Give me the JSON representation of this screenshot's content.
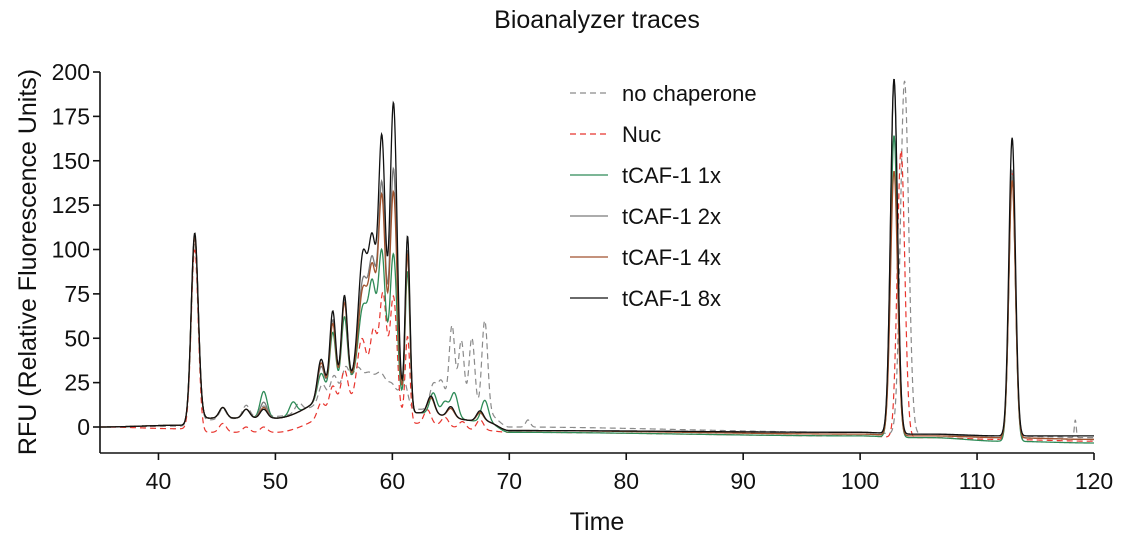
{
  "chart_data": {
    "type": "line",
    "title": "Bioanalyzer traces",
    "xlabel": "Time",
    "ylabel": "RFU (Relative Fluorescence Units)",
    "xlim": [
      35,
      120
    ],
    "ylim": [
      -15,
      200
    ],
    "xticks": [
      40,
      50,
      60,
      70,
      80,
      90,
      100,
      110,
      120
    ],
    "yticks": [
      0,
      25,
      50,
      75,
      100,
      125,
      150,
      175,
      200
    ],
    "grid": false,
    "legend_position": "top-center",
    "series": [
      {
        "name": "no chaperone",
        "color": "#8a8a8a",
        "dash": true,
        "baseline": [
          [
            35,
            0
          ],
          [
            42,
            0.5
          ],
          [
            44,
            4
          ],
          [
            50,
            6
          ],
          [
            58,
            22
          ],
          [
            62,
            10
          ],
          [
            68,
            8
          ],
          [
            70,
            0
          ],
          [
            100,
            -3
          ],
          [
            104,
            -4
          ],
          [
            106,
            -4
          ],
          [
            112,
            -5
          ],
          [
            120,
            -6
          ]
        ],
        "peaks": [
          [
            43.1,
            102,
            0.3
          ],
          [
            45.5,
            6,
            0.3
          ],
          [
            47.5,
            7,
            0.3
          ],
          [
            49,
            6,
            0.3
          ],
          [
            52,
            5,
            0.3
          ],
          [
            54,
            10,
            0.3
          ],
          [
            55,
            12,
            0.3
          ],
          [
            56,
            14,
            0.3
          ],
          [
            57,
            12,
            0.4
          ],
          [
            58,
            8,
            0.4
          ],
          [
            59,
            10,
            0.4
          ],
          [
            60,
            8,
            0.4
          ],
          [
            61,
            14,
            0.3
          ],
          [
            63.5,
            14,
            0.3
          ],
          [
            64.2,
            16,
            0.3
          ],
          [
            65.1,
            48,
            0.25
          ],
          [
            65.9,
            40,
            0.25
          ],
          [
            66.8,
            42,
            0.25
          ],
          [
            67.9,
            52,
            0.25
          ],
          [
            71.6,
            4,
            0.2
          ],
          [
            103.8,
            199,
            0.35
          ],
          [
            113,
            151,
            0.28
          ],
          [
            118.4,
            10,
            0.08
          ]
        ]
      },
      {
        "name": "Nuc",
        "color": "#e8352e",
        "dash": true,
        "baseline": [
          [
            35,
            0
          ],
          [
            42,
            -1
          ],
          [
            44,
            -3
          ],
          [
            50,
            -3
          ],
          [
            58,
            15
          ],
          [
            62,
            2
          ],
          [
            68,
            -2
          ],
          [
            70,
            -3
          ],
          [
            100,
            -5
          ],
          [
            104,
            -6
          ],
          [
            106,
            -6
          ],
          [
            112,
            -7
          ],
          [
            120,
            -8
          ]
        ],
        "peaks": [
          [
            43.1,
            102,
            0.3
          ],
          [
            45.5,
            5,
            0.3
          ],
          [
            47.5,
            3,
            0.3
          ],
          [
            49,
            3,
            0.3
          ],
          [
            53.9,
            8,
            0.3
          ],
          [
            54.9,
            14,
            0.3
          ],
          [
            55.9,
            20,
            0.3
          ],
          [
            57.4,
            35,
            0.4
          ],
          [
            58.4,
            38,
            0.3
          ],
          [
            59.2,
            62,
            0.3
          ],
          [
            60.1,
            65,
            0.3
          ],
          [
            61.3,
            48,
            0.2
          ],
          [
            63,
            8,
            0.3
          ],
          [
            64.5,
            5,
            0.3
          ],
          [
            66,
            4,
            0.3
          ],
          [
            67.5,
            6,
            0.3
          ],
          [
            103.5,
            162,
            0.32
          ],
          [
            113,
            150,
            0.28
          ]
        ]
      },
      {
        "name": "tCAF-1 1x",
        "color": "#2e8b57",
        "dash": false,
        "baseline": [
          [
            35,
            0
          ],
          [
            42,
            1
          ],
          [
            44,
            5
          ],
          [
            50,
            5
          ],
          [
            58,
            28
          ],
          [
            62,
            8
          ],
          [
            68,
            3
          ],
          [
            70,
            -3
          ],
          [
            100,
            -5
          ],
          [
            104,
            -6
          ],
          [
            106,
            -6
          ],
          [
            112,
            -8
          ],
          [
            120,
            -9
          ]
        ],
        "peaks": [
          [
            43.1,
            104,
            0.3
          ],
          [
            45.5,
            6,
            0.3
          ],
          [
            47.5,
            5,
            0.3
          ],
          [
            49,
            15,
            0.3
          ],
          [
            51.5,
            7,
            0.3
          ],
          [
            53.9,
            14,
            0.3
          ],
          [
            54.9,
            33,
            0.25
          ],
          [
            55.9,
            38,
            0.25
          ],
          [
            57.5,
            40,
            0.4
          ],
          [
            58.3,
            48,
            0.3
          ],
          [
            59.1,
            74,
            0.3
          ],
          [
            60.1,
            80,
            0.3
          ],
          [
            61.3,
            78,
            0.2
          ],
          [
            63.5,
            12,
            0.3
          ],
          [
            64.5,
            8,
            0.3
          ],
          [
            65.3,
            14,
            0.3
          ],
          [
            67.9,
            12,
            0.3
          ],
          [
            102.9,
            170,
            0.3
          ],
          [
            113,
            150,
            0.28
          ]
        ]
      },
      {
        "name": "tCAF-1 2x",
        "color": "#7a7a7a",
        "dash": false,
        "baseline": [
          [
            35,
            0
          ],
          [
            42,
            1
          ],
          [
            44,
            5
          ],
          [
            50,
            5
          ],
          [
            58,
            28
          ],
          [
            62,
            8
          ],
          [
            68,
            3
          ],
          [
            70,
            -2
          ],
          [
            100,
            -3
          ],
          [
            104,
            -4
          ],
          [
            106,
            -4
          ],
          [
            112,
            -6
          ],
          [
            120,
            -7
          ]
        ],
        "peaks": [
          [
            43.1,
            104,
            0.3
          ],
          [
            45.5,
            6,
            0.3
          ],
          [
            47.5,
            5,
            0.3
          ],
          [
            49,
            9,
            0.3
          ],
          [
            53.9,
            18,
            0.3
          ],
          [
            54.9,
            40,
            0.25
          ],
          [
            55.9,
            48,
            0.25
          ],
          [
            57.5,
            55,
            0.4
          ],
          [
            58.3,
            58,
            0.3
          ],
          [
            59.1,
            112,
            0.3
          ],
          [
            60.1,
            128,
            0.3
          ],
          [
            61.3,
            90,
            0.2
          ],
          [
            63.3,
            10,
            0.3
          ],
          [
            65,
            5,
            0.3
          ],
          [
            67.5,
            5,
            0.3
          ],
          [
            102.9,
            198,
            0.3
          ],
          [
            113,
            148,
            0.28
          ]
        ]
      },
      {
        "name": "tCAF-1 4x",
        "color": "#a0522d",
        "dash": false,
        "baseline": [
          [
            35,
            0
          ],
          [
            42,
            1
          ],
          [
            44,
            5
          ],
          [
            50,
            5
          ],
          [
            58,
            28
          ],
          [
            62,
            8
          ],
          [
            68,
            3
          ],
          [
            70,
            -2
          ],
          [
            100,
            -4
          ],
          [
            104,
            -5
          ],
          [
            106,
            -5
          ],
          [
            112,
            -6
          ],
          [
            120,
            -7
          ]
        ],
        "peaks": [
          [
            43.1,
            104,
            0.3
          ],
          [
            45.5,
            6,
            0.3
          ],
          [
            47.5,
            5,
            0.3
          ],
          [
            49,
            6,
            0.3
          ],
          [
            53.9,
            20,
            0.3
          ],
          [
            54.9,
            38,
            0.25
          ],
          [
            55.9,
            46,
            0.25
          ],
          [
            57.5,
            50,
            0.4
          ],
          [
            58.3,
            55,
            0.3
          ],
          [
            59.1,
            105,
            0.3
          ],
          [
            60.1,
            115,
            0.3
          ],
          [
            61.3,
            88,
            0.2
          ],
          [
            63.3,
            9,
            0.3
          ],
          [
            65,
            5,
            0.3
          ],
          [
            67.5,
            5,
            0.3
          ],
          [
            102.9,
            149,
            0.3
          ],
          [
            113,
            145,
            0.28
          ]
        ]
      },
      {
        "name": "tCAF-1 8x",
        "color": "#111111",
        "dash": false,
        "baseline": [
          [
            35,
            0
          ],
          [
            42,
            1
          ],
          [
            44,
            5
          ],
          [
            50,
            5
          ],
          [
            58,
            28
          ],
          [
            62,
            8
          ],
          [
            68,
            3
          ],
          [
            70,
            -2
          ],
          [
            100,
            -3
          ],
          [
            104,
            -4
          ],
          [
            106,
            -4
          ],
          [
            112,
            -5
          ],
          [
            120,
            -5
          ]
        ],
        "peaks": [
          [
            43.1,
            106,
            0.3
          ],
          [
            45.5,
            6,
            0.3
          ],
          [
            47.5,
            5,
            0.3
          ],
          [
            49,
            5,
            0.3
          ],
          [
            53.9,
            22,
            0.3
          ],
          [
            54.9,
            45,
            0.25
          ],
          [
            55.9,
            50,
            0.25
          ],
          [
            57.5,
            70,
            0.4
          ],
          [
            58.3,
            68,
            0.3
          ],
          [
            59.1,
            138,
            0.3
          ],
          [
            60.1,
            165,
            0.3
          ],
          [
            61.3,
            98,
            0.2
          ],
          [
            63.3,
            10,
            0.3
          ],
          [
            65,
            6,
            0.3
          ],
          [
            67.5,
            6,
            0.3
          ],
          [
            102.9,
            200,
            0.3
          ],
          [
            113,
            168,
            0.28
          ]
        ]
      }
    ]
  }
}
